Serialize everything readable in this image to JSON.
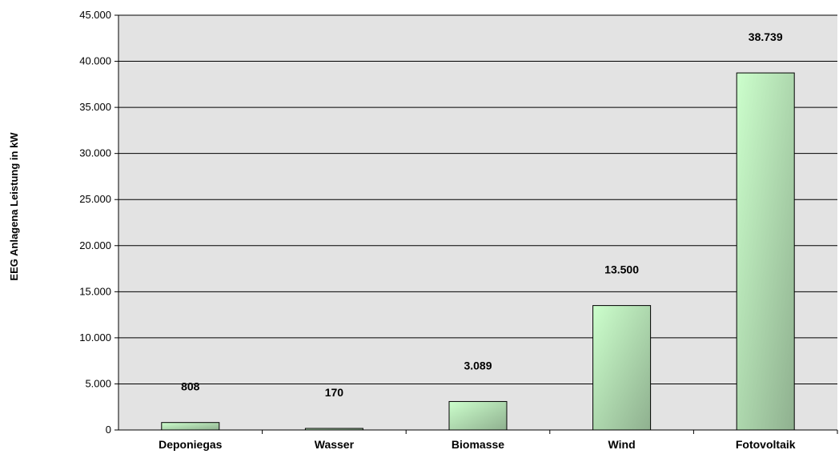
{
  "chart_data": {
    "type": "bar",
    "categories": [
      "Deponiegas",
      "Wasser",
      "Biomasse",
      "Wind",
      "Fotovoltaik"
    ],
    "values": [
      808,
      170,
      3089,
      13500,
      38739
    ],
    "value_labels": [
      "808",
      "170",
      "3.089",
      "13.500",
      "38.739"
    ],
    "title": "",
    "xlabel": "",
    "ylabel": "EEG Anlagena  Leistung in kW",
    "ylim": [
      0,
      45000
    ],
    "yticks": [
      0,
      5000,
      10000,
      15000,
      20000,
      25000,
      30000,
      35000,
      40000,
      45000
    ],
    "ytick_labels": [
      "0",
      "5.000",
      "10.000",
      "15.000",
      "20.000",
      "25.000",
      "30.000",
      "35.000",
      "40.000",
      "45.000"
    ],
    "grid": true,
    "legend": "none",
    "colors": {
      "plot_background": "#e3e3e3",
      "bar_light": "#ccffcc",
      "bar_dark": "#8fb08f",
      "grid": "#000000"
    }
  }
}
